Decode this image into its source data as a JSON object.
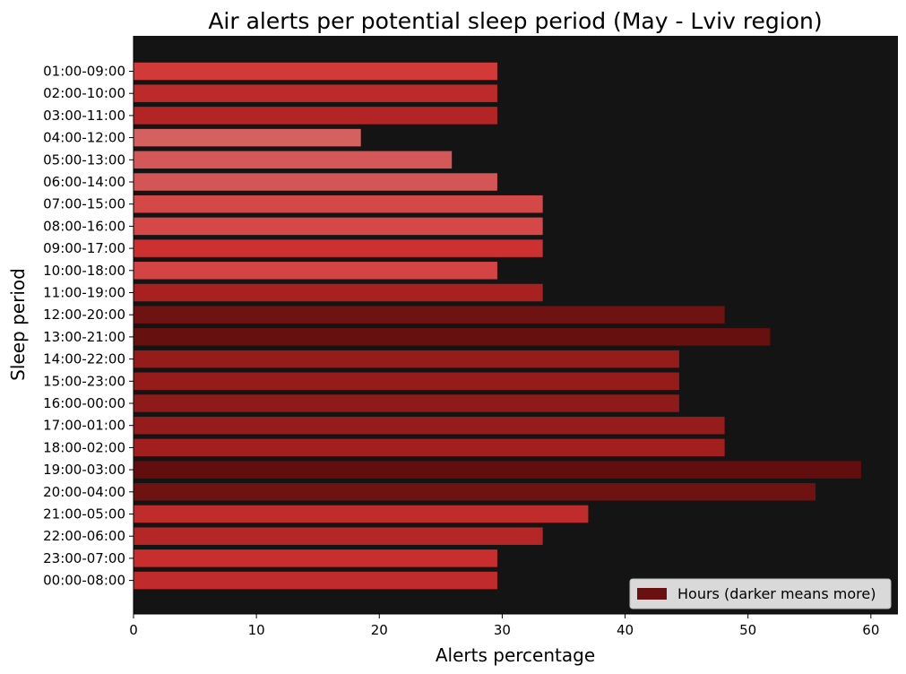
{
  "chart_data": {
    "type": "bar",
    "orientation": "horizontal",
    "title": "Air alerts per potential sleep period (May - Lviv region)",
    "xlabel": "Alerts percentage",
    "ylabel": "Sleep period",
    "xlim": [
      0,
      62.2
    ],
    "xticks": [
      0,
      10,
      20,
      30,
      40,
      50,
      60
    ],
    "background": "#141414",
    "grid": false,
    "legend": {
      "label": "Hours (darker means more)",
      "placement": "bottom-right",
      "swatch_color": "#6b1010"
    },
    "categories": [
      "01:00-09:00",
      "02:00-10:00",
      "03:00-11:00",
      "04:00-12:00",
      "05:00-13:00",
      "06:00-14:00",
      "07:00-15:00",
      "08:00-16:00",
      "09:00-17:00",
      "10:00-18:00",
      "11:00-19:00",
      "12:00-20:00",
      "13:00-21:00",
      "14:00-22:00",
      "15:00-23:00",
      "16:00-00:00",
      "17:00-01:00",
      "18:00-02:00",
      "19:00-03:00",
      "20:00-04:00",
      "21:00-05:00",
      "22:00-06:00",
      "23:00-07:00",
      "00:00-08:00"
    ],
    "values": [
      29.6,
      29.6,
      29.6,
      18.5,
      25.9,
      29.6,
      33.3,
      33.3,
      33.3,
      29.6,
      33.3,
      48.1,
      51.8,
      44.4,
      44.4,
      44.4,
      48.1,
      48.1,
      59.2,
      55.5,
      37.0,
      33.3,
      29.6,
      29.6
    ],
    "colors": [
      "#d23a3a",
      "#bc2a2a",
      "#b32525",
      "#d46060",
      "#d45858",
      "#d45555",
      "#d44848",
      "#d44848",
      "#cc3030",
      "#d44444",
      "#a82020",
      "#6e1212",
      "#661010",
      "#961c1c",
      "#961c1c",
      "#8e1a1a",
      "#961c1c",
      "#a31f1f",
      "#620e0e",
      "#6e1212",
      "#c02b2b",
      "#b52626",
      "#c82e2e",
      "#c22b2b"
    ]
  }
}
